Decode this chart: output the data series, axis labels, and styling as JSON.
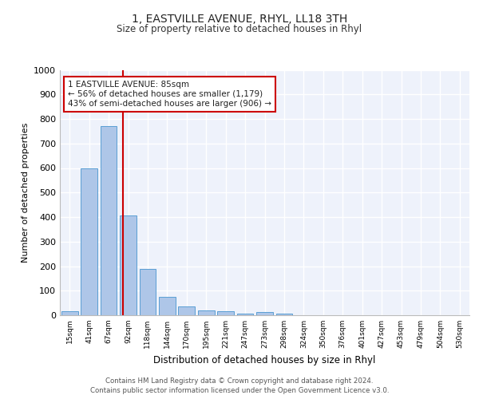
{
  "title": "1, EASTVILLE AVENUE, RHYL, LL18 3TH",
  "subtitle": "Size of property relative to detached houses in Rhyl",
  "xlabel": "Distribution of detached houses by size in Rhyl",
  "ylabel": "Number of detached properties",
  "bar_labels": [
    "15sqm",
    "41sqm",
    "67sqm",
    "92sqm",
    "118sqm",
    "144sqm",
    "170sqm",
    "195sqm",
    "221sqm",
    "247sqm",
    "273sqm",
    "298sqm",
    "324sqm",
    "350sqm",
    "376sqm",
    "401sqm",
    "427sqm",
    "453sqm",
    "479sqm",
    "504sqm",
    "530sqm"
  ],
  "bar_values": [
    15,
    600,
    770,
    405,
    190,
    75,
    35,
    18,
    15,
    5,
    12,
    5,
    0,
    0,
    0,
    0,
    0,
    0,
    0,
    0,
    0
  ],
  "bar_color": "#aec6e8",
  "bar_edge_color": "#5a9fd4",
  "background_color": "#ffffff",
  "plot_bg_color": "#eef2fb",
  "grid_color": "#ffffff",
  "ylim": [
    0,
    1000
  ],
  "yticks": [
    0,
    100,
    200,
    300,
    400,
    500,
    600,
    700,
    800,
    900,
    1000
  ],
  "property_line_x": 2.75,
  "annotation_text": "1 EASTVILLE AVENUE: 85sqm\n← 56% of detached houses are smaller (1,179)\n43% of semi-detached houses are larger (906) →",
  "annotation_box_color": "#ffffff",
  "annotation_box_edge": "#cc0000",
  "footer1": "Contains HM Land Registry data © Crown copyright and database right 2024.",
  "footer2": "Contains public sector information licensed under the Open Government Licence v3.0."
}
